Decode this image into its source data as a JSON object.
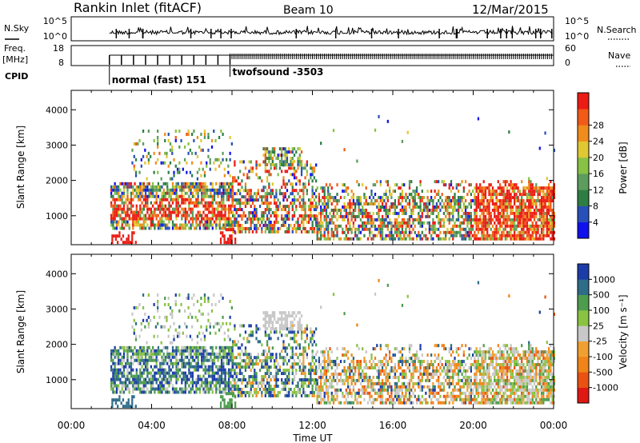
{
  "header": {
    "station": "Rankin Inlet (fitACF)",
    "beam": "Beam 10",
    "date": "12/Mar/2015"
  },
  "noise_panel": {
    "left_label": "N.Sky",
    "right_label": "N.Search",
    "left_ticks": [
      "10^5",
      "10^0"
    ],
    "right_ticks": [
      "10^5",
      "10^0"
    ]
  },
  "freq_panel": {
    "left_label_line1": "Freq.",
    "left_label_line2": "[MHz]",
    "left_ticks": [
      "18",
      "8"
    ],
    "right_label": "Nave",
    "right_ticks": [
      "60",
      "0"
    ]
  },
  "cpid": {
    "label": "CPID",
    "modes": [
      {
        "name": "normal (fast) 151",
        "start_hour": 1.9
      },
      {
        "name": "twofsound -3503",
        "start_hour": 7.9
      }
    ]
  },
  "x_axis": {
    "label": "Time UT",
    "ticks": [
      "00:00",
      "04:00",
      "08:00",
      "12:00",
      "16:00",
      "20:00",
      "00:00"
    ]
  },
  "colors": {
    "power": [
      "#1010ee",
      "#2850b8",
      "#2e7e44",
      "#5c9c5c",
      "#88c244",
      "#e0c832",
      "#f08c1c",
      "#f25a18",
      "#ea1c14"
    ],
    "velocity": [
      "#e01814",
      "#ea5212",
      "#f08418",
      "#f0a030",
      "#c8c8c8",
      "#8ac242",
      "#4e9c4e",
      "#2e6c88",
      "#1c3ca8"
    ]
  },
  "chart_data": [
    {
      "type": "heatmap",
      "title": "",
      "xlabel": "Time UT",
      "ylabel": "Slant Range [km]",
      "xlim": [
        0,
        24
      ],
      "ylim": [
        180,
        4550
      ],
      "yticks": [
        1000,
        2000,
        3000,
        4000
      ],
      "colorbar": {
        "label": "Power [dB]",
        "ticks": [
          "4",
          "8",
          "12",
          "16",
          "20",
          "24",
          "28"
        ],
        "range": [
          0,
          32
        ]
      }
    },
    {
      "type": "heatmap",
      "title": "",
      "xlabel": "Time UT",
      "ylabel": "Slant Range [km]",
      "xlim": [
        0,
        24
      ],
      "ylim": [
        180,
        4550
      ],
      "yticks": [
        1000,
        2000,
        3000,
        4000
      ],
      "colorbar": {
        "label": "Velocity [m s⁻¹]",
        "ticks": [
          "-1000",
          "-500",
          "-100",
          "-25",
          "25",
          "100",
          "500",
          "1000"
        ]
      }
    }
  ]
}
